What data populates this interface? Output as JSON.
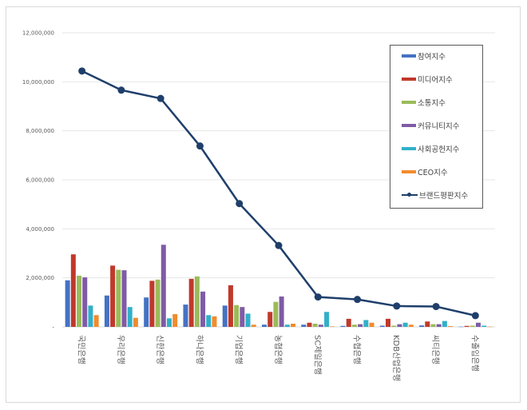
{
  "chart_data": {
    "type": "bar+line",
    "title": "",
    "xlabel": "",
    "ylabel": "",
    "ylim": [
      0,
      12000000
    ],
    "yticks": [
      0,
      2000000,
      4000000,
      6000000,
      8000000,
      10000000,
      12000000
    ],
    "ytick_labels": [
      "-",
      "2,000,000",
      "4,000,000",
      "6,000,000",
      "8,000,000",
      "10,000,000",
      "12,000,000"
    ],
    "grid": true,
    "legend_position": "right-inside",
    "categories": [
      "국민은행",
      "우리은행",
      "신한은행",
      "하나은행",
      "기업은행",
      "농협은행",
      "SC제일은행",
      "수협은행",
      "KDB산업은행",
      "씨티은행",
      "수출입은행"
    ],
    "series": [
      {
        "name": "참여지수",
        "type": "bar",
        "color": "#4472c4",
        "values": [
          1900000,
          1280000,
          1200000,
          910000,
          870000,
          90000,
          90000,
          40000,
          50000,
          60000,
          10000
        ]
      },
      {
        "name": "미디어지수",
        "type": "bar",
        "color": "#c0392b",
        "values": [
          2960000,
          2500000,
          1880000,
          1960000,
          1700000,
          610000,
          170000,
          330000,
          330000,
          220000,
          40000
        ]
      },
      {
        "name": "소통지수",
        "type": "bar",
        "color": "#9bbb59",
        "values": [
          2090000,
          2330000,
          1930000,
          2060000,
          890000,
          1020000,
          130000,
          90000,
          50000,
          110000,
          50000
        ]
      },
      {
        "name": "커뮤니티지수",
        "type": "bar",
        "color": "#7f5ba6",
        "values": [
          2020000,
          2310000,
          3350000,
          1440000,
          810000,
          1240000,
          90000,
          110000,
          110000,
          110000,
          170000
        ]
      },
      {
        "name": "사회공헌지수",
        "type": "bar",
        "color": "#31b0c9",
        "values": [
          870000,
          810000,
          350000,
          480000,
          540000,
          90000,
          610000,
          280000,
          170000,
          240000,
          50000
        ]
      },
      {
        "name": "CEO지수",
        "type": "bar",
        "color": "#f08c2e",
        "values": [
          480000,
          370000,
          520000,
          430000,
          90000,
          130000,
          20000,
          170000,
          90000,
          30000,
          10000
        ]
      },
      {
        "name": "브랜드평판지수",
        "type": "line",
        "color": "#1f3f6b",
        "values": [
          10440000,
          9660000,
          9320000,
          7380000,
          5030000,
          3320000,
          1220000,
          1120000,
          850000,
          830000,
          460000
        ]
      }
    ]
  }
}
